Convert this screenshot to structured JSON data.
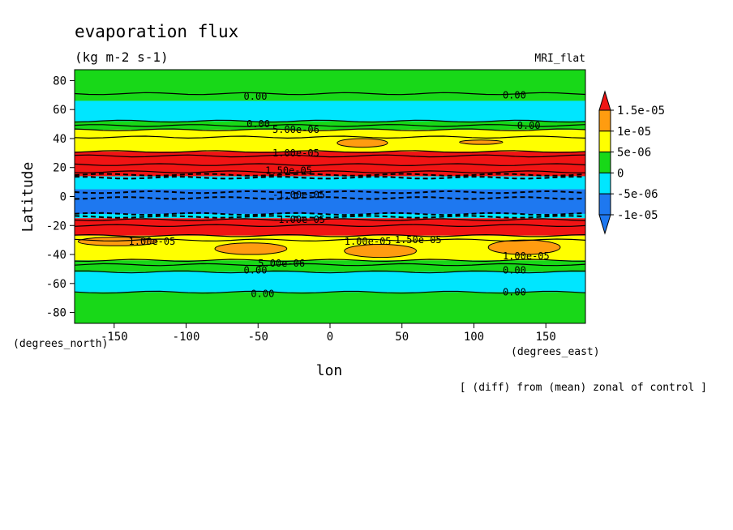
{
  "chart_data": {
    "type": "heatmap",
    "title": "evaporation flux",
    "units": "(kg m-2 s-1)",
    "model_label": "MRI_flat",
    "xlabel": "lon",
    "ylabel": "Latitude",
    "x_unit_label": "(degrees_east)",
    "y_unit_label": "(degrees_north)",
    "note": "[ (diff) from (mean) zonal of control ]",
    "xlim": [
      -177.5,
      177.5
    ],
    "ylim": [
      -87.5,
      87.5
    ],
    "x_ticks": [
      -150,
      -100,
      -50,
      0,
      50,
      100,
      150
    ],
    "x_tick_labels": [
      "-150",
      "-100",
      "-50",
      "0",
      "50",
      "100",
      "150"
    ],
    "y_ticks": [
      80,
      60,
      40,
      20,
      0,
      -20,
      -40,
      -60,
      -80
    ],
    "y_tick_labels": [
      "80",
      "60",
      "40",
      "20",
      "0",
      "-20",
      "-40",
      "-60",
      "-80"
    ],
    "colorbar": {
      "levels": [
        -1e-05,
        -5e-06,
        0,
        5e-06,
        1e-05,
        1.5e-05
      ],
      "labels": [
        "-1e-05",
        "-5e-06",
        "0",
        "5e-06",
        "1e-05",
        "1.5e-05"
      ],
      "colors": [
        "#1e78f0",
        "#00e6ff",
        "#18d818",
        "#ffff00",
        "#ff9c10",
        "#f01414"
      ],
      "under_color": "#1e78f0",
      "over_color": "#f01414"
    },
    "bands": [
      {
        "lat_top": 87.5,
        "lat_bottom": 66,
        "color": "#18d818"
      },
      {
        "lat_top": 66,
        "lat_bottom": 52,
        "color": "#00e6ff"
      },
      {
        "lat_top": 52,
        "lat_bottom": 46,
        "color": "#18d818"
      },
      {
        "lat_top": 46,
        "lat_bottom": 31,
        "color": "#ffff00"
      },
      {
        "lat_top": 31,
        "lat_bottom": 14,
        "color": "#f01414"
      },
      {
        "lat_top": 14,
        "lat_bottom": 5,
        "color": "#00e6ff"
      },
      {
        "lat_top": 5,
        "lat_bottom": -12,
        "color": "#1e78f0"
      },
      {
        "lat_top": -12,
        "lat_bottom": -15,
        "color": "#00e6ff"
      },
      {
        "lat_top": -15,
        "lat_bottom": -27,
        "color": "#f01414"
      },
      {
        "lat_top": -27,
        "lat_bottom": -44,
        "color": "#ffff00"
      },
      {
        "lat_top": -44,
        "lat_bottom": -52,
        "color": "#18d818"
      },
      {
        "lat_top": -52,
        "lat_bottom": -66,
        "color": "#00e6ff"
      },
      {
        "lat_top": -66,
        "lat_bottom": -87.5,
        "color": "#18d818"
      }
    ],
    "patches": [
      {
        "lon_min": 5,
        "lon_max": 40,
        "lat_min": 34,
        "lat_max": 40,
        "color": "#ff9c10"
      },
      {
        "lon_min": 90,
        "lon_max": 120,
        "lat_min": 36,
        "lat_max": 39,
        "color": "#ff9c10"
      },
      {
        "lon_min": -175,
        "lon_max": -120,
        "lat_min": -34,
        "lat_max": -28,
        "color": "#ff9c10"
      },
      {
        "lon_min": -80,
        "lon_max": -30,
        "lat_min": -40,
        "lat_max": -32,
        "color": "#ff9c10"
      },
      {
        "lon_min": 10,
        "lon_max": 60,
        "lat_min": -42,
        "lat_max": -33,
        "color": "#ff9c10"
      },
      {
        "lon_min": 110,
        "lon_max": 160,
        "lat_min": -40,
        "lat_max": -30,
        "color": "#ff9c10"
      }
    ],
    "contour_lines": [
      {
        "lat": 71,
        "style": "solid"
      },
      {
        "lat": 52,
        "style": "solid"
      },
      {
        "lat": 49,
        "style": "solid"
      },
      {
        "lat": 46,
        "style": "solid"
      },
      {
        "lat": 41,
        "style": "solid"
      },
      {
        "lat": 31,
        "style": "solid"
      },
      {
        "lat": 28,
        "style": "solid"
      },
      {
        "lat": 22,
        "style": "solid"
      },
      {
        "lat": 17,
        "style": "solid"
      },
      {
        "lat": 15,
        "style": "dashed"
      },
      {
        "lat": 13,
        "style": "dashed"
      },
      {
        "lat": 3,
        "style": "dashed"
      },
      {
        "lat": -1,
        "style": "dashed"
      },
      {
        "lat": -12,
        "style": "dashed"
      },
      {
        "lat": -14,
        "style": "dashed"
      },
      {
        "lat": -16,
        "style": "solid"
      },
      {
        "lat": -20,
        "style": "solid"
      },
      {
        "lat": -27,
        "style": "solid"
      },
      {
        "lat": -30,
        "style": "solid"
      },
      {
        "lat": -44,
        "style": "solid"
      },
      {
        "lat": -47,
        "style": "solid"
      },
      {
        "lat": -52,
        "style": "solid"
      },
      {
        "lat": -66,
        "style": "solid"
      }
    ],
    "contour_labels": [
      {
        "text": "0.00",
        "lon": -60,
        "lat": 69
      },
      {
        "text": "0.00",
        "lon": 120,
        "lat": 70
      },
      {
        "text": "0.00",
        "lon": -58,
        "lat": 50
      },
      {
        "text": "0.00",
        "lon": 130,
        "lat": 49
      },
      {
        "text": "5.00e-06",
        "lon": -40,
        "lat": 46
      },
      {
        "text": "1.00e-05",
        "lon": -40,
        "lat": 30
      },
      {
        "text": "1.50e-05",
        "lon": -45,
        "lat": 18
      },
      {
        "text": "-1.00e-05",
        "lon": -40,
        "lat": 1
      },
      {
        "text": "-1.00e-05",
        "lon": -40,
        "lat": -16
      },
      {
        "text": "1.00e-05",
        "lon": -140,
        "lat": -31
      },
      {
        "text": "1.00e-05",
        "lon": 10,
        "lat": -31
      },
      {
        "text": "1.50e-05",
        "lon": 45,
        "lat": -30
      },
      {
        "text": "1.00e-05",
        "lon": 120,
        "lat": -41
      },
      {
        "text": "5.00e-06",
        "lon": -50,
        "lat": -46
      },
      {
        "text": "0.00",
        "lon": -60,
        "lat": -51
      },
      {
        "text": "0.00",
        "lon": 120,
        "lat": -51
      },
      {
        "text": "0.00",
        "lon": -55,
        "lat": -67
      },
      {
        "text": "0.00",
        "lon": 120,
        "lat": -66
      }
    ]
  }
}
